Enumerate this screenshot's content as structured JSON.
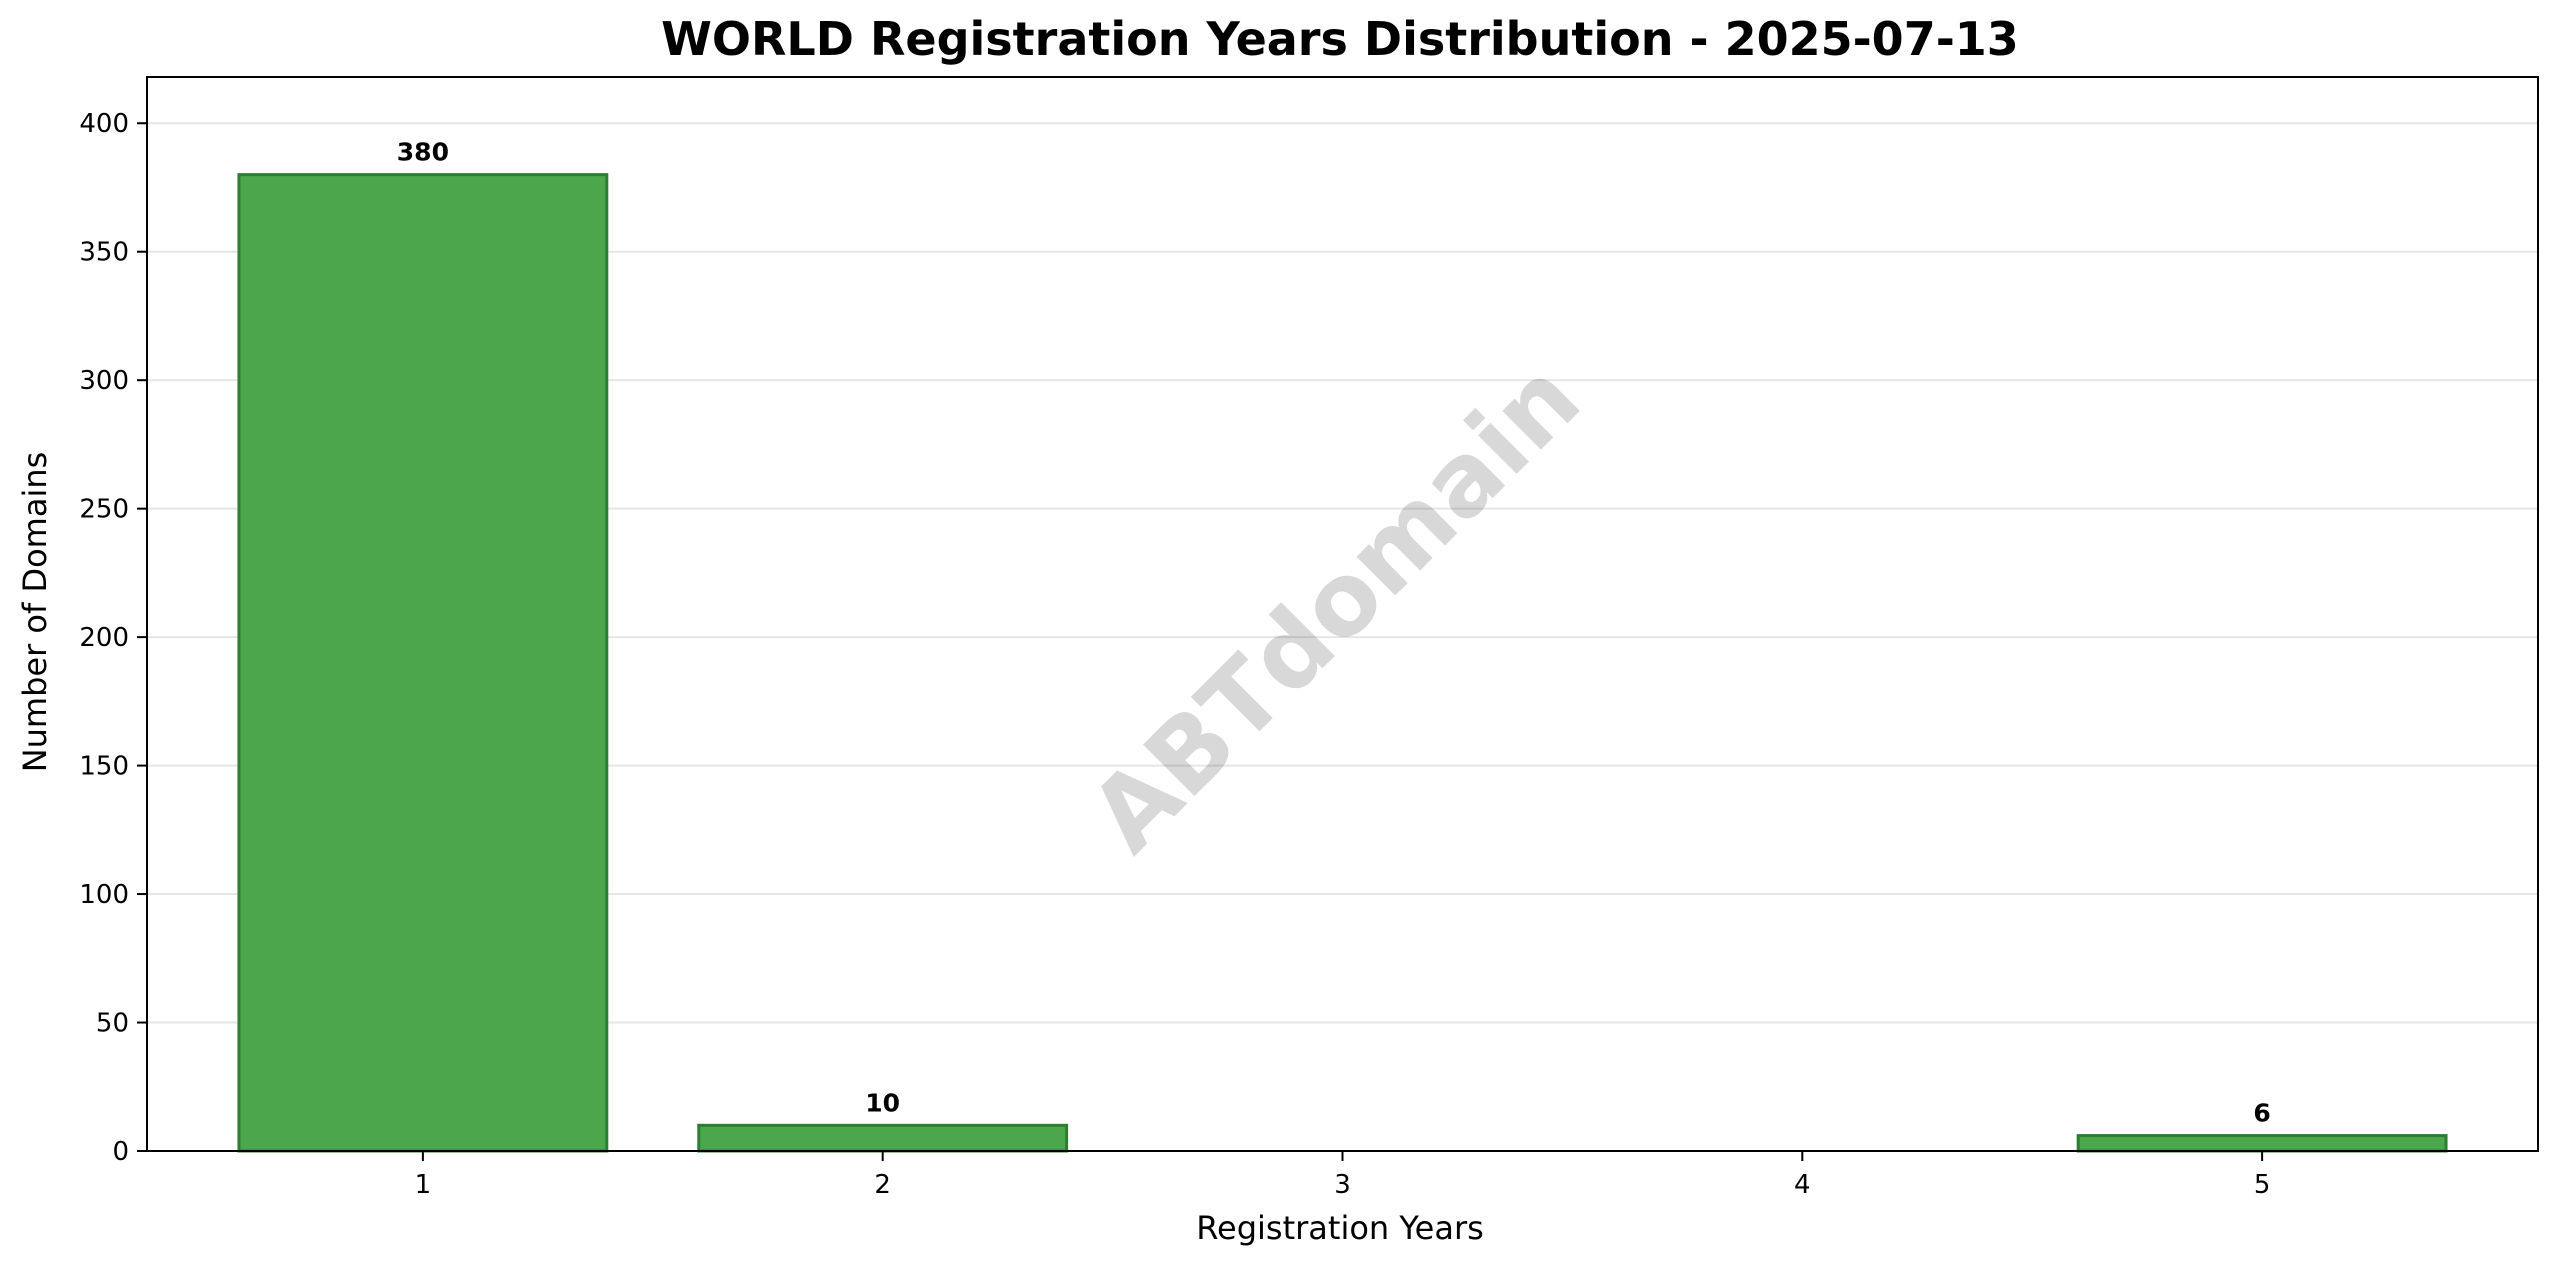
{
  "chart_data": {
    "type": "bar",
    "title": "WORLD Registration Years Distribution - 2025-07-13",
    "xlabel": "Registration Years",
    "ylabel": "Number of Domains",
    "categories": [
      "1",
      "2",
      "3",
      "4",
      "5"
    ],
    "x": [
      1,
      2,
      3,
      4,
      5
    ],
    "values": [
      380,
      10,
      0,
      0,
      6
    ],
    "data_labels": [
      "380",
      "10",
      "",
      "",
      "6"
    ],
    "ylim": [
      0,
      418
    ],
    "yticks": [
      0,
      50,
      100,
      150,
      200,
      250,
      300,
      350,
      400
    ],
    "grid": "y",
    "legend": "none",
    "bar_color": "#4ca64c",
    "bar_edge_color": "#2e7d32",
    "grid_color": "#e6e6e6"
  },
  "watermark": "ABTdomain"
}
